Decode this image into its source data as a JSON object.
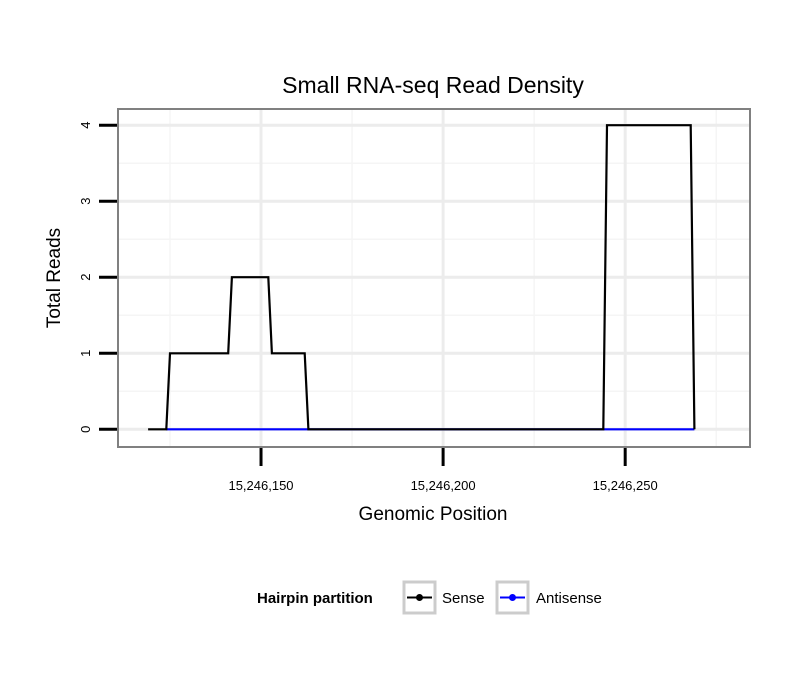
{
  "chart_data": {
    "type": "line",
    "title": "Small RNA-seq Read Density",
    "xlabel": "Genomic Position",
    "ylabel": "Total Reads",
    "xlim": [
      15246111,
      15246284
    ],
    "ylim": [
      -0.22,
      4.2
    ],
    "x_ticks": [
      15246150,
      15246200,
      15246250
    ],
    "x_tick_labels": [
      "15,246,150",
      "15,246,200",
      "15,246,250"
    ],
    "y_ticks": [
      0,
      1,
      2,
      3,
      4
    ],
    "y_tick_labels": [
      "0",
      "1",
      "2",
      "3",
      "4"
    ],
    "x_minor_gridlines": [
      15246125,
      15246175,
      15246225,
      15246275
    ],
    "y_minor_gridlines": [
      0.5,
      1.5,
      2.5,
      3.5
    ],
    "grid": true,
    "series": [
      {
        "name": "Sense",
        "color": "#000000",
        "x": [
          15246119,
          15246124,
          15246125,
          15246141,
          15246142,
          15246152,
          15246153,
          15246162,
          15246163,
          15246244,
          15246245,
          15246268,
          15246269
        ],
        "values": [
          0,
          0,
          1,
          1,
          2,
          2,
          1,
          1,
          0,
          0,
          4,
          4,
          0
        ]
      },
      {
        "name": "Antisense",
        "color": "#0000ff",
        "x": [
          15246124,
          15246162,
          15246245,
          15246269
        ],
        "values": [
          0,
          0,
          0,
          0
        ]
      }
    ],
    "legend": {
      "title": "Hairpin partition",
      "position": "bottom",
      "entries": [
        "Sense",
        "Antisense"
      ]
    }
  }
}
